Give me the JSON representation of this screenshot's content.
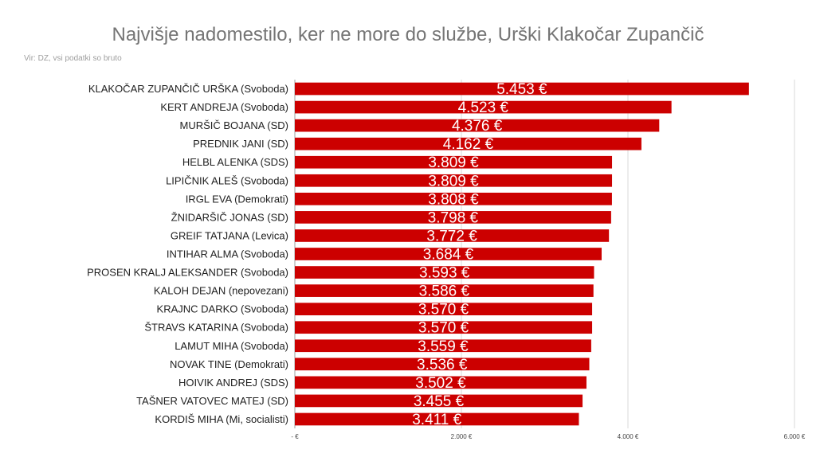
{
  "chart_data": {
    "type": "bar",
    "orientation": "horizontal",
    "title": "Najvišje nadomestilo, ker ne more do službe, Urški Klakočar Zupančič",
    "subtitle": "Vir: DZ, vsi podatki so bruto",
    "bar_color": "#cc0000",
    "value_label_color": "#ffffff",
    "xlim": [
      0,
      6000
    ],
    "grid": true,
    "legend": "none",
    "ticks": [
      {
        "value": 0,
        "label": "-   €"
      },
      {
        "value": 2000,
        "label": "2.000 €"
      },
      {
        "value": 4000,
        "label": "4.000 €"
      },
      {
        "value": 6000,
        "label": "6.000 €"
      }
    ],
    "categories": [
      "KLAKOČAR ZUPANČIČ URŠKA (Svoboda)",
      "KERT ANDREJA (Svoboda)",
      "MURŠIČ BOJANA (SD)",
      "PREDNIK JANI (SD)",
      "HELBL ALENKA (SDS)",
      "LIPIČNIK ALEŠ (Svoboda)",
      "IRGL EVA (Demokrati)",
      "ŽNIDARŠIČ JONAS (SD)",
      "GREIF TATJANA (Levica)",
      "INTIHAR ALMA (Svoboda)",
      "PROSEN KRALJ ALEKSANDER (Svoboda)",
      "KALOH DEJAN (nepovezani)",
      "KRAJNC DARKO (Svoboda)",
      "ŠTRAVS KATARINA (Svoboda)",
      "LAMUT MIHA (Svoboda)",
      "NOVAK TINE (Demokrati)",
      "HOIVIK ANDREJ (SDS)",
      "TAŠNER VATOVEC MATEJ (SD)",
      "KORDIŠ MIHA (Mi, socialisti)"
    ],
    "values": [
      5453,
      4523,
      4376,
      4162,
      3809,
      3809,
      3808,
      3798,
      3772,
      3684,
      3593,
      3586,
      3570,
      3570,
      3559,
      3536,
      3502,
      3455,
      3411
    ],
    "value_labels": [
      "5.453 €",
      "4.523 €",
      "4.376 €",
      "4.162 €",
      "3.809 €",
      "3.809 €",
      "3.808 €",
      "3.798 €",
      "3.772 €",
      "3.684 €",
      "3.593 €",
      "3.586 €",
      "3.570 €",
      "3.570 €",
      "3.559 €",
      "3.536 €",
      "3.502 €",
      "3.455 €",
      "3.411 €"
    ]
  }
}
